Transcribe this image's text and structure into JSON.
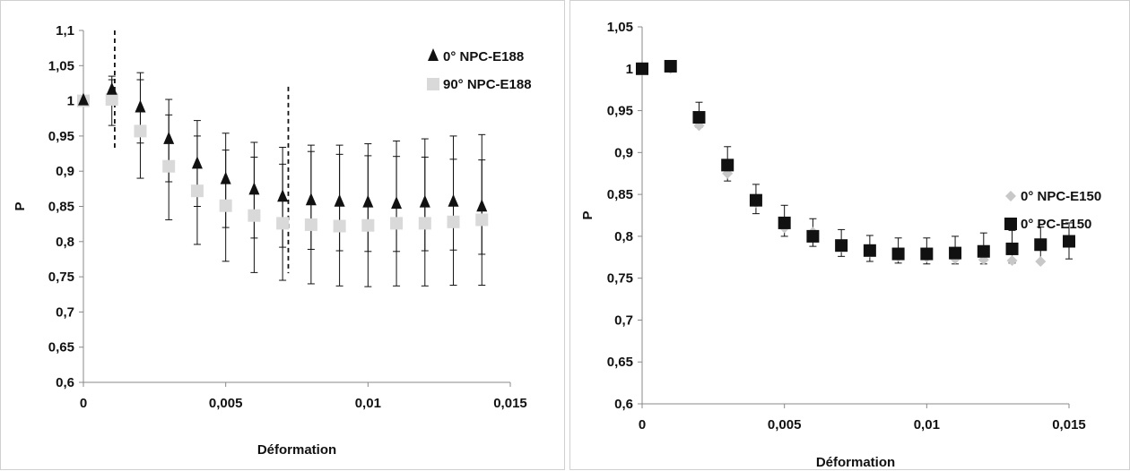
{
  "chart_data": [
    {
      "type": "scatter",
      "title": "",
      "xlabel": "Déformation",
      "ylabel": "P",
      "xlim": [
        0,
        0.015
      ],
      "ylim": [
        0.6,
        1.1
      ],
      "x_ticks": [
        "0",
        "0,005",
        "0,01",
        "0,015"
      ],
      "y_ticks": [
        "0,6",
        "0,65",
        "0,7",
        "0,75",
        "0,8",
        "0,85",
        "0,9",
        "0,95",
        "1",
        "1,05",
        "1,1"
      ],
      "legend_position": "top-right",
      "grid": false,
      "vertical_dashed_lines_x": [
        0.0011,
        0.0072
      ],
      "series": [
        {
          "name": "0° NPC-E188",
          "marker": "triangle",
          "color": "#111111",
          "x": [
            0,
            0.001,
            0.002,
            0.003,
            0.004,
            0.005,
            0.006,
            0.007,
            0.008,
            0.009,
            0.01,
            0.011,
            0.012,
            0.013,
            0.014
          ],
          "y": [
            1.0,
            1.015,
            0.99,
            0.945,
            0.91,
            0.888,
            0.873,
            0.863,
            0.858,
            0.856,
            0.855,
            0.853,
            0.855,
            0.856,
            0.849
          ],
          "err_low": [
            0,
            1.0,
            0.94,
            0.885,
            0.85,
            0.82,
            0.805,
            0.792,
            0.789,
            0.787,
            0.786,
            0.786,
            0.787,
            0.788,
            0.782
          ],
          "err_high": [
            0,
            1.035,
            1.04,
            1.002,
            0.972,
            0.954,
            0.941,
            0.934,
            0.937,
            0.937,
            0.939,
            0.943,
            0.946,
            0.95,
            0.952
          ]
        },
        {
          "name": "90° NPC-E188",
          "marker": "square",
          "color": "#d9d9d9",
          "x": [
            0,
            0.001,
            0.002,
            0.003,
            0.004,
            0.005,
            0.006,
            0.007,
            0.008,
            0.009,
            0.01,
            0.011,
            0.012,
            0.013,
            0.014
          ],
          "y": [
            1.0,
            1.002,
            0.957,
            0.907,
            0.872,
            0.851,
            0.837,
            0.826,
            0.824,
            0.822,
            0.823,
            0.826,
            0.826,
            0.828,
            0.831
          ],
          "err_low": [
            0,
            0.965,
            0.89,
            0.831,
            0.796,
            0.772,
            0.756,
            0.745,
            0.74,
            0.737,
            0.736,
            0.737,
            0.737,
            0.738,
            0.738
          ],
          "err_high": [
            0,
            1.03,
            1.03,
            0.98,
            0.95,
            0.93,
            0.92,
            0.91,
            0.928,
            0.924,
            0.922,
            0.921,
            0.92,
            0.917,
            0.916
          ]
        }
      ]
    },
    {
      "type": "scatter",
      "title": "",
      "xlabel": "Déformation",
      "ylabel": "P",
      "xlim": [
        0,
        0.015
      ],
      "ylim": [
        0.6,
        1.05
      ],
      "x_ticks": [
        "0",
        "0,005",
        "0,01",
        "0,015"
      ],
      "y_ticks": [
        "0,6",
        "0,65",
        "0,7",
        "0,75",
        "0,8",
        "0,85",
        "0,9",
        "0,95",
        "1",
        "1,05"
      ],
      "legend_position": "right",
      "grid": false,
      "series": [
        {
          "name": "0° NPC-E150",
          "marker": "diamond",
          "color": "#c8c8c8",
          "x": [
            0,
            0.001,
            0.002,
            0.003,
            0.004,
            0.005,
            0.006,
            0.007,
            0.008,
            0.009,
            0.01,
            0.011,
            0.012,
            0.013,
            0.014
          ],
          "y": [
            0.998,
            1.0,
            0.932,
            0.875,
            0.84,
            0.81,
            0.805,
            0.787,
            0.781,
            0.776,
            0.775,
            0.773,
            0.772,
            0.771,
            0.77
          ]
        },
        {
          "name": "0° PC-E150",
          "marker": "square",
          "color": "#111111",
          "x": [
            0,
            0.001,
            0.002,
            0.003,
            0.004,
            0.005,
            0.006,
            0.007,
            0.008,
            0.009,
            0.01,
            0.011,
            0.012,
            0.013,
            0.014,
            0.015
          ],
          "y": [
            1.0,
            1.003,
            0.942,
            0.885,
            0.843,
            0.816,
            0.8,
            0.789,
            0.783,
            0.779,
            0.779,
            0.78,
            0.782,
            0.785,
            0.79,
            0.794
          ],
          "err_low": [
            0,
            0,
            0.93,
            0.866,
            0.827,
            0.8,
            0.788,
            0.776,
            0.77,
            0.768,
            0.767,
            0.767,
            0.767,
            0.768,
            0.771,
            0.773
          ],
          "err_high": [
            0,
            0,
            0.96,
            0.907,
            0.862,
            0.837,
            0.821,
            0.808,
            0.801,
            0.798,
            0.798,
            0.8,
            0.804,
            0.807,
            0.811,
            0.816
          ]
        }
      ]
    }
  ]
}
